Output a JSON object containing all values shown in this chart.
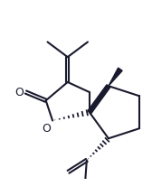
{
  "background": "#ffffff",
  "line_color": "#1a1a2e",
  "line_width": 1.5,
  "figsize": [
    1.68,
    2.17
  ],
  "dpi": 100
}
